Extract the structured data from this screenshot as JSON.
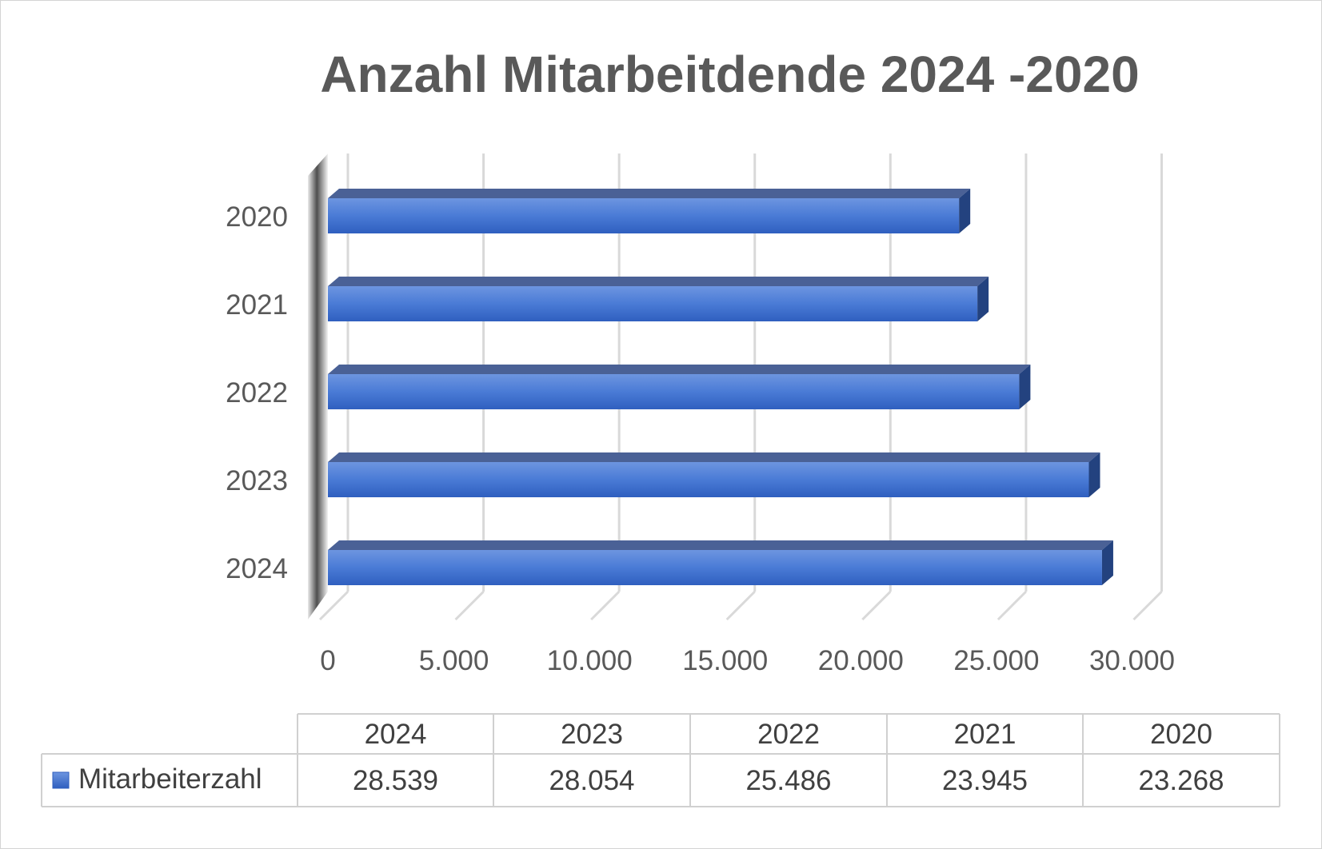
{
  "chart_data": {
    "type": "bar",
    "orientation": "horizontal",
    "title": "Anzahl Mitarbeitdende 2024 -2020",
    "categories": [
      "2024",
      "2023",
      "2022",
      "2021",
      "2020"
    ],
    "series": [
      {
        "name": "Mitarbeiterzahl",
        "values": [
          28539,
          28054,
          25486,
          23945,
          23268
        ],
        "color": "#4472c4"
      }
    ],
    "xlim": [
      0,
      30000
    ],
    "x_ticks": [
      "0",
      "5.000",
      "10.000",
      "15.000",
      "20.000",
      "25.000",
      "30.000"
    ],
    "value_labels": [
      "28.539",
      "28.054",
      "25.486",
      "23.945",
      "23.268"
    ],
    "grid": true,
    "data_table": true,
    "legend": "in-data-table"
  }
}
